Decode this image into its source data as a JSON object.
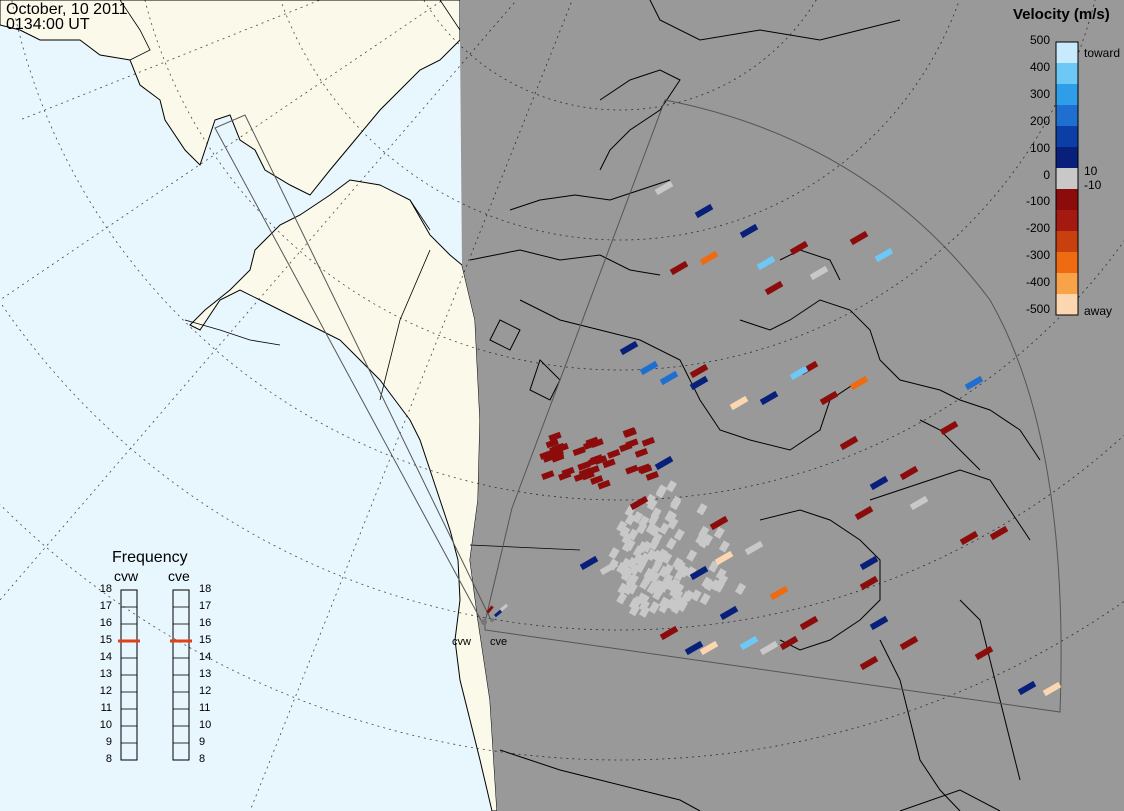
{
  "header": {
    "date": "October, 10 2011",
    "time": "0134:00 UT"
  },
  "velocity_scale": {
    "title": "Velocity (m/s)",
    "ticks": [
      "500",
      "400",
      "300",
      "200",
      "100",
      "10",
      "0",
      "-10",
      "-100",
      "-200",
      "-300",
      "-400",
      "-500"
    ],
    "toward_label": "toward",
    "away_label": "away",
    "colors": [
      "#c8eafd",
      "#6ec8f6",
      "#2f9ee8",
      "#1f6fd0",
      "#0b3fa6",
      "#08207a",
      "#c8c8c8",
      "#8c0c0c",
      "#a51a10",
      "#c9400f",
      "#ee6b12",
      "#f8a24a",
      "#fbd6b0"
    ]
  },
  "frequency_panel": {
    "title": "Frequency",
    "radars": [
      {
        "name": "cvw",
        "value_mhz": 15
      },
      {
        "name": "cve",
        "value_mhz": 15
      }
    ],
    "ticks": [
      "18",
      "17",
      "16",
      "15",
      "14",
      "13",
      "12",
      "11",
      "10",
      "9",
      "8"
    ],
    "marker_color": "#e0401a"
  },
  "stations": [
    {
      "name": "cvw"
    },
    {
      "name": "cve"
    }
  ],
  "colors": {
    "ocean": "#e8f6fd",
    "land": "#fbf9ea",
    "night_side": "#999999",
    "ground_scatter": "#c8c8c8"
  }
}
